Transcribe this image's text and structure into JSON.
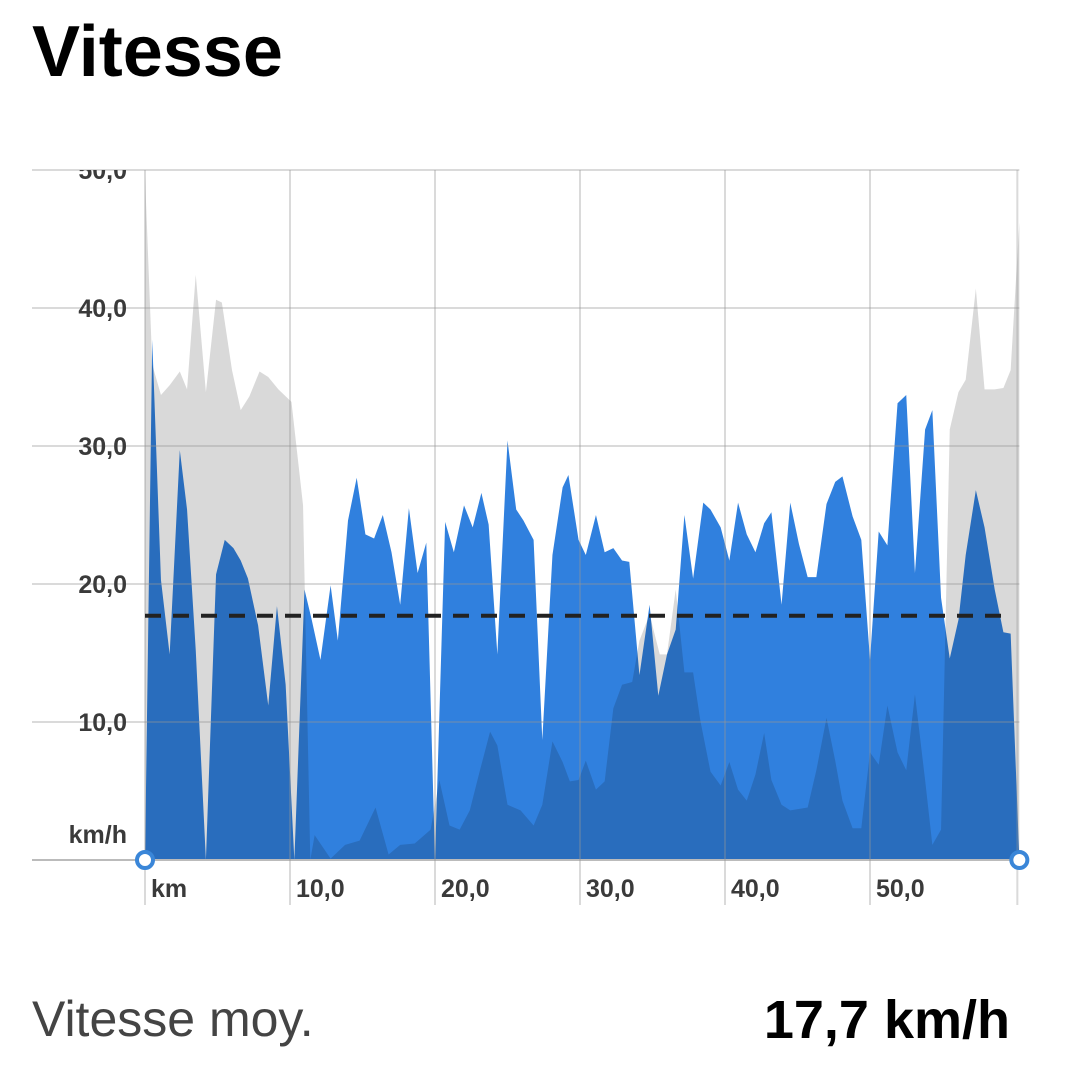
{
  "chart_data": {
    "type": "area",
    "title": "Vitesse",
    "xlim": [
      0,
      60.3
    ],
    "ylim": [
      0,
      50
    ],
    "xticks": [
      {
        "value": 0,
        "label": "km"
      },
      {
        "value": 10,
        "label": "10,0"
      },
      {
        "value": 20,
        "label": "20,0"
      },
      {
        "value": 30,
        "label": "30,0"
      },
      {
        "value": 40,
        "label": "40,0"
      },
      {
        "value": 50,
        "label": "50,0"
      }
    ],
    "yticks": [
      {
        "value": 0,
        "label": "km/h"
      },
      {
        "value": 10,
        "label": "10,0"
      },
      {
        "value": 20,
        "label": "20,0"
      },
      {
        "value": 30,
        "label": "30,0"
      },
      {
        "value": 40,
        "label": "40,0"
      },
      {
        "value": 50,
        "label": "50,0"
      }
    ],
    "grid": true,
    "average": {
      "value": 17.7,
      "label": "17,7 km/h",
      "name": "Vitesse moy."
    },
    "series": [
      {
        "color": "#3080de",
        "x": [
          0,
          0.5,
          1.1,
          1.7,
          2.4,
          2.9,
          3.5,
          4.2,
          4.9,
          5.5,
          6.1,
          6.6,
          7.1,
          7.8,
          8.5,
          9.1,
          9.7,
          10.3,
          11.0,
          11.5,
          12.1,
          12.8,
          13.3,
          14.0,
          14.6,
          15.2,
          15.8,
          16.4,
          17.0,
          17.6,
          18.2,
          18.8,
          19.4,
          20.0,
          20.7,
          21.3,
          22.0,
          22.6,
          23.2,
          23.7,
          24.3,
          25.0,
          25.6,
          26.1,
          26.8,
          27.4,
          28.1,
          28.8,
          29.2,
          29.9,
          30.4,
          31.1,
          31.7,
          32.3,
          32.9,
          33.4,
          34.1,
          34.8,
          35.4,
          36.0,
          36.6,
          37.2,
          37.8,
          38.5,
          39.0,
          39.7,
          40.3,
          40.9,
          41.5,
          42.1,
          42.7,
          43.2,
          43.9,
          44.5,
          45.1,
          45.7,
          46.3,
          47.0,
          47.6,
          48.1,
          48.8,
          49.4,
          50.0,
          50.6,
          51.2,
          51.9,
          52.5,
          53.1,
          53.8,
          54.3,
          54.9,
          55.5,
          56.1,
          56.6,
          57.3,
          57.9,
          58.6,
          59.2,
          59.7,
          60.3
        ],
        "values": [
          0,
          37.7,
          20.3,
          14.9,
          29.7,
          25.4,
          15.2,
          0,
          20.7,
          23.2,
          22.6,
          21.7,
          20.4,
          17.0,
          11.2,
          18.4,
          12.7,
          0,
          19.6,
          17.4,
          14.5,
          19.9,
          15.9,
          24.6,
          27.7,
          23.6,
          23.3,
          25.0,
          22.3,
          18.5,
          25.5,
          20.8,
          23.0,
          0,
          24.5,
          22.3,
          25.7,
          24.1,
          26.6,
          24.3,
          14.9,
          30.4,
          25.4,
          24.6,
          23.2,
          8.7,
          22.1,
          27.0,
          27.9,
          23.2,
          22.1,
          25.0,
          22.3,
          22.6,
          21.7,
          21.6,
          13.4,
          18.5,
          11.9,
          14.9,
          16.7,
          25.0,
          20.4,
          25.9,
          25.4,
          24.1,
          21.7,
          25.9,
          23.6,
          22.3,
          24.4,
          25.2,
          18.5,
          25.9,
          22.9,
          20.5,
          20.5,
          25.8,
          27.4,
          27.8,
          24.9,
          23.2,
          14.5,
          23.8,
          22.8,
          33.1,
          33.7,
          20.8,
          31.2,
          32.6,
          19.0,
          14.6,
          17.4,
          22.1,
          26.8,
          24.1,
          19.6,
          16.5,
          16.4,
          0
        ]
      },
      {
        "color": "#d9d9d9",
        "x": [
          0,
          0.5,
          1.1,
          1.7,
          2.4,
          2.9,
          3.5,
          4.2,
          4.9,
          5.3,
          6.0,
          6.6,
          7.2,
          7.9,
          8.5,
          9.2,
          10.1,
          10.9,
          11.4,
          11.7,
          12.8,
          13.8,
          14.8,
          15.9,
          16.8,
          17.6,
          18.6,
          19.7,
          20.3,
          21.0,
          21.7,
          22.4,
          23.1,
          23.8,
          24.3,
          25.0,
          25.9,
          26.8,
          27.4,
          28.1,
          28.8,
          29.3,
          29.9,
          30.4,
          31.1,
          31.7,
          32.3,
          32.9,
          33.6,
          34.1,
          34.8,
          35.5,
          36.0,
          36.6,
          37.2,
          37.8,
          38.3,
          39.0,
          39.7,
          40.3,
          40.9,
          41.5,
          42.1,
          42.7,
          43.2,
          43.9,
          44.5,
          45.7,
          46.3,
          47.0,
          47.6,
          48.1,
          48.8,
          49.4,
          50.0,
          50.6,
          51.2,
          51.9,
          52.5,
          53.1,
          53.8,
          54.3,
          54.9,
          55.5,
          56.1,
          56.6,
          57.3,
          57.9,
          58.6,
          59.2,
          59.7,
          60.3
        ],
        "values": [
          49.6,
          35.9,
          33.7,
          34.4,
          35.4,
          34.1,
          42.4,
          33.9,
          40.6,
          40.4,
          35.5,
          32.6,
          33.6,
          35.4,
          35.0,
          34.1,
          33.2,
          25.7,
          0,
          1.8,
          0.1,
          1.1,
          1.4,
          3.8,
          0.4,
          1.1,
          1.2,
          2.2,
          5.8,
          2.5,
          2.2,
          3.6,
          6.5,
          9.3,
          8.3,
          4.0,
          3.6,
          2.5,
          4.0,
          8.6,
          7.1,
          5.7,
          5.8,
          7.2,
          5.1,
          5.7,
          11.0,
          12.7,
          12.9,
          15.9,
          17.8,
          14.9,
          14.9,
          19.6,
          13.6,
          13.6,
          10.1,
          6.4,
          5.4,
          7.1,
          5.1,
          4.3,
          6.2,
          9.2,
          5.8,
          4.0,
          3.6,
          3.8,
          6.5,
          10.3,
          7.2,
          4.3,
          2.3,
          2.3,
          7.8,
          6.9,
          11.2,
          7.8,
          6.5,
          12.0,
          5.8,
          1.1,
          2.2,
          31.2,
          33.9,
          34.8,
          41.4,
          34.1,
          34.1,
          34.2,
          35.5,
          46.2
        ]
      }
    ]
  }
}
